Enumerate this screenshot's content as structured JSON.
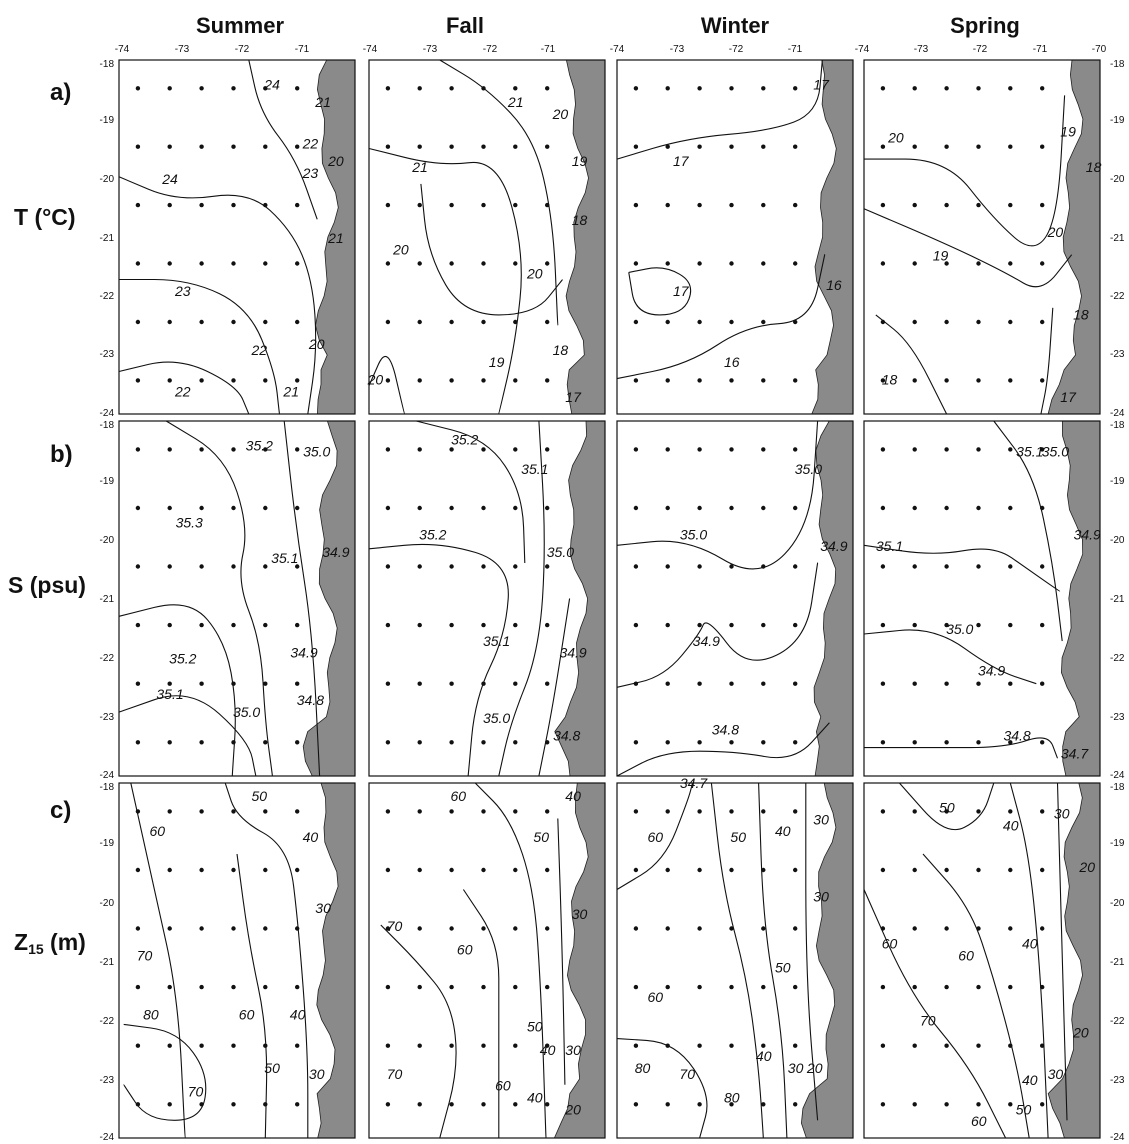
{
  "seasons": [
    "Summer",
    "Fall",
    "Winter",
    "Spring"
  ],
  "rows": [
    {
      "letter": "a)",
      "variable": "T (°C)"
    },
    {
      "letter": "b)",
      "variable": "S (psu)"
    },
    {
      "letter": "c)",
      "variable_main": "Z",
      "variable_sub": "15",
      "variable_unit": " (m)"
    }
  ],
  "axes": {
    "lon_ticks": [
      "-74",
      "-73",
      "-72",
      "-71"
    ],
    "lon_ticks_last": [
      "-74",
      "-73",
      "-72",
      "-71",
      "-70"
    ],
    "lat_ticks": [
      "-18",
      "-19",
      "-20",
      "-21",
      "-22",
      "-23",
      "-24"
    ],
    "lon_range": [
      -74,
      -70.3
    ],
    "lat_range": [
      -24,
      -18
    ]
  },
  "colors": {
    "land": "#8a8a8a",
    "ink": "#111111"
  },
  "panels": [
    {
      "row": 0,
      "col": 0,
      "labels": [
        {
          "text": "24",
          "lon": -71.6,
          "lat": -18.5
        },
        {
          "text": "21",
          "lon": -70.8,
          "lat": -18.8
        },
        {
          "text": "22",
          "lon": -71.0,
          "lat": -19.5
        },
        {
          "text": "20",
          "lon": -70.6,
          "lat": -19.8
        },
        {
          "text": "23",
          "lon": -71.0,
          "lat": -20.0
        },
        {
          "text": "24",
          "lon": -73.2,
          "lat": -20.1
        },
        {
          "text": "21",
          "lon": -70.6,
          "lat": -21.1
        },
        {
          "text": "23",
          "lon": -73.0,
          "lat": -22.0
        },
        {
          "text": "22",
          "lon": -71.8,
          "lat": -23.0
        },
        {
          "text": "20",
          "lon": -70.9,
          "lat": -22.9
        },
        {
          "text": "22",
          "lon": -73.0,
          "lat": -23.7
        },
        {
          "text": "21",
          "lon": -71.3,
          "lat": -23.7
        }
      ]
    },
    {
      "row": 0,
      "col": 1,
      "labels": [
        {
          "text": "21",
          "lon": -71.7,
          "lat": -18.8
        },
        {
          "text": "20",
          "lon": -71.0,
          "lat": -19.0
        },
        {
          "text": "21",
          "lon": -73.2,
          "lat": -19.9
        },
        {
          "text": "19",
          "lon": -70.7,
          "lat": -19.8
        },
        {
          "text": "18",
          "lon": -70.7,
          "lat": -20.8
        },
        {
          "text": "20",
          "lon": -73.5,
          "lat": -21.3
        },
        {
          "text": "20",
          "lon": -71.4,
          "lat": -21.7
        },
        {
          "text": "19",
          "lon": -72.0,
          "lat": -23.2
        },
        {
          "text": "18",
          "lon": -71.0,
          "lat": -23.0
        },
        {
          "text": "17",
          "lon": -70.8,
          "lat": -23.8
        },
        {
          "text": "20",
          "lon": -73.9,
          "lat": -23.5
        }
      ]
    },
    {
      "row": 0,
      "col": 2,
      "labels": [
        {
          "text": "17",
          "lon": -70.8,
          "lat": -18.5
        },
        {
          "text": "17",
          "lon": -73.0,
          "lat": -19.8
        },
        {
          "text": "17",
          "lon": -73.0,
          "lat": -22.0
        },
        {
          "text": "16",
          "lon": -70.6,
          "lat": -21.9
        },
        {
          "text": "16",
          "lon": -72.2,
          "lat": -23.2
        }
      ]
    },
    {
      "row": 0,
      "col": 3,
      "labels": [
        {
          "text": "20",
          "lon": -73.5,
          "lat": -19.4
        },
        {
          "text": "19",
          "lon": -70.8,
          "lat": -19.3
        },
        {
          "text": "18",
          "lon": -70.4,
          "lat": -19.9
        },
        {
          "text": "20",
          "lon": -71.0,
          "lat": -21.0
        },
        {
          "text": "19",
          "lon": -72.8,
          "lat": -21.4
        },
        {
          "text": "18",
          "lon": -70.6,
          "lat": -22.4
        },
        {
          "text": "18",
          "lon": -73.6,
          "lat": -23.5
        },
        {
          "text": "17",
          "lon": -70.8,
          "lat": -23.8
        }
      ]
    },
    {
      "row": 1,
      "col": 0,
      "labels": [
        {
          "text": "35.2",
          "lon": -71.8,
          "lat": -18.5
        },
        {
          "text": "35.0",
          "lon": -70.9,
          "lat": -18.6
        },
        {
          "text": "35.3",
          "lon": -72.9,
          "lat": -19.8
        },
        {
          "text": "35.1",
          "lon": -71.4,
          "lat": -20.4
        },
        {
          "text": "34.9",
          "lon": -70.6,
          "lat": -20.3
        },
        {
          "text": "35.2",
          "lon": -73.0,
          "lat": -22.1
        },
        {
          "text": "34.9",
          "lon": -71.1,
          "lat": -22.0
        },
        {
          "text": "35.1",
          "lon": -73.2,
          "lat": -22.7
        },
        {
          "text": "34.8",
          "lon": -71.0,
          "lat": -22.8
        },
        {
          "text": "35.0",
          "lon": -72.0,
          "lat": -23.0
        }
      ]
    },
    {
      "row": 1,
      "col": 1,
      "labels": [
        {
          "text": "35.2",
          "lon": -72.5,
          "lat": -18.4
        },
        {
          "text": "35.1",
          "lon": -71.4,
          "lat": -18.9
        },
        {
          "text": "35.2",
          "lon": -73.0,
          "lat": -20.0
        },
        {
          "text": "35.0",
          "lon": -71.0,
          "lat": -20.3
        },
        {
          "text": "35.1",
          "lon": -72.0,
          "lat": -21.8
        },
        {
          "text": "34.9",
          "lon": -70.8,
          "lat": -22.0
        },
        {
          "text": "35.0",
          "lon": -72.0,
          "lat": -23.1
        },
        {
          "text": "34.8",
          "lon": -70.9,
          "lat": -23.4
        }
      ]
    },
    {
      "row": 1,
      "col": 2,
      "labels": [
        {
          "text": "35.0",
          "lon": -71.0,
          "lat": -18.9
        },
        {
          "text": "35.0",
          "lon": -72.8,
          "lat": -20.0
        },
        {
          "text": "34.9",
          "lon": -70.6,
          "lat": -20.2
        },
        {
          "text": "34.9",
          "lon": -72.6,
          "lat": -21.8
        },
        {
          "text": "34.8",
          "lon": -72.3,
          "lat": -23.3
        },
        {
          "text": "34.7",
          "lon": -72.8,
          "lat": -24.2
        }
      ]
    },
    {
      "row": 1,
      "col": 3,
      "labels": [
        {
          "text": "35.1",
          "lon": -71.4,
          "lat": -18.6
        },
        {
          "text": "35.0",
          "lon": -71.0,
          "lat": -18.6
        },
        {
          "text": "34.9",
          "lon": -70.5,
          "lat": -20.0
        },
        {
          "text": "35.1",
          "lon": -73.6,
          "lat": -20.2
        },
        {
          "text": "35.0",
          "lon": -72.5,
          "lat": -21.6
        },
        {
          "text": "34.9",
          "lon": -72.0,
          "lat": -22.3
        },
        {
          "text": "34.8",
          "lon": -71.6,
          "lat": -23.4
        },
        {
          "text": "34.7",
          "lon": -70.7,
          "lat": -23.7
        }
      ]
    },
    {
      "row": 2,
      "col": 0,
      "labels": [
        {
          "text": "50",
          "lon": -71.8,
          "lat": -18.3
        },
        {
          "text": "60",
          "lon": -73.4,
          "lat": -18.9
        },
        {
          "text": "40",
          "lon": -71.0,
          "lat": -19.0
        },
        {
          "text": "30",
          "lon": -70.8,
          "lat": -20.2
        },
        {
          "text": "70",
          "lon": -73.6,
          "lat": -21.0
        },
        {
          "text": "80",
          "lon": -73.5,
          "lat": -22.0
        },
        {
          "text": "60",
          "lon": -72.0,
          "lat": -22.0
        },
        {
          "text": "40",
          "lon": -71.2,
          "lat": -22.0
        },
        {
          "text": "50",
          "lon": -71.6,
          "lat": -22.9
        },
        {
          "text": "30",
          "lon": -70.9,
          "lat": -23.0
        },
        {
          "text": "70",
          "lon": -72.8,
          "lat": -23.3
        }
      ]
    },
    {
      "row": 2,
      "col": 1,
      "labels": [
        {
          "text": "60",
          "lon": -72.6,
          "lat": -18.3
        },
        {
          "text": "40",
          "lon": -70.8,
          "lat": -18.3
        },
        {
          "text": "50",
          "lon": -71.3,
          "lat": -19.0
        },
        {
          "text": "70",
          "lon": -73.6,
          "lat": -20.5
        },
        {
          "text": "30",
          "lon": -70.7,
          "lat": -20.3
        },
        {
          "text": "60",
          "lon": -72.5,
          "lat": -20.9
        },
        {
          "text": "50",
          "lon": -71.4,
          "lat": -22.2
        },
        {
          "text": "40",
          "lon": -71.2,
          "lat": -22.6
        },
        {
          "text": "30",
          "lon": -70.8,
          "lat": -22.6
        },
        {
          "text": "70",
          "lon": -73.6,
          "lat": -23.0
        },
        {
          "text": "60",
          "lon": -71.9,
          "lat": -23.2
        },
        {
          "text": "40",
          "lon": -71.4,
          "lat": -23.4
        },
        {
          "text": "20",
          "lon": -70.8,
          "lat": -23.6
        }
      ]
    },
    {
      "row": 2,
      "col": 2,
      "labels": [
        {
          "text": "60",
          "lon": -73.4,
          "lat": -19.0
        },
        {
          "text": "50",
          "lon": -72.1,
          "lat": -19.0
        },
        {
          "text": "40",
          "lon": -71.4,
          "lat": -18.9
        },
        {
          "text": "30",
          "lon": -70.8,
          "lat": -18.7
        },
        {
          "text": "30",
          "lon": -70.8,
          "lat": -20.0
        },
        {
          "text": "50",
          "lon": -71.4,
          "lat": -21.2
        },
        {
          "text": "60",
          "lon": -73.4,
          "lat": -21.7
        },
        {
          "text": "40",
          "lon": -71.7,
          "lat": -22.7
        },
        {
          "text": "30",
          "lon": -71.2,
          "lat": -22.9
        },
        {
          "text": "20",
          "lon": -70.9,
          "lat": -22.9
        },
        {
          "text": "80",
          "lon": -73.6,
          "lat": -22.9
        },
        {
          "text": "70",
          "lon": -72.9,
          "lat": -23.0
        },
        {
          "text": "80",
          "lon": -72.2,
          "lat": -23.4
        }
      ]
    },
    {
      "row": 2,
      "col": 3,
      "labels": [
        {
          "text": "50",
          "lon": -72.7,
          "lat": -18.5
        },
        {
          "text": "40",
          "lon": -71.7,
          "lat": -18.8
        },
        {
          "text": "30",
          "lon": -70.9,
          "lat": -18.6
        },
        {
          "text": "20",
          "lon": -70.5,
          "lat": -19.5
        },
        {
          "text": "60",
          "lon": -73.6,
          "lat": -20.8
        },
        {
          "text": "60",
          "lon": -72.4,
          "lat": -21.0
        },
        {
          "text": "40",
          "lon": -71.4,
          "lat": -20.8
        },
        {
          "text": "70",
          "lon": -73.0,
          "lat": -22.1
        },
        {
          "text": "20",
          "lon": -70.6,
          "lat": -22.3
        },
        {
          "text": "40",
          "lon": -71.4,
          "lat": -23.1
        },
        {
          "text": "30",
          "lon": -71.0,
          "lat": -23.0
        },
        {
          "text": "60",
          "lon": -72.2,
          "lat": -23.8
        },
        {
          "text": "50",
          "lon": -71.5,
          "lat": -23.6
        }
      ]
    }
  ]
}
